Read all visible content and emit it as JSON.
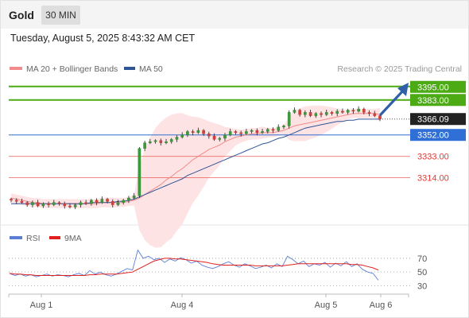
{
  "header": {
    "instrument": "Gold",
    "timeframe": "30 MIN",
    "datetime": "Tuesday, August 5, 2025 8:43:32 AM CET"
  },
  "legend": {
    "items": [
      {
        "label": "MA 20 + Bollinger Bands",
        "color": "#f28b8b"
      },
      {
        "label": "MA 50",
        "color": "#2f5597"
      }
    ],
    "credit": "Research © 2025 Trading Central"
  },
  "rsi_legend": {
    "items": [
      {
        "label": "RSI",
        "color": "#5b7fd6"
      },
      {
        "label": "9MA",
        "color": "#e02020"
      }
    ]
  },
  "chart_data": [
    {
      "type": "candlestick",
      "ylim": [
        3277,
        3404
      ],
      "xlabels": [
        "Aug 1",
        "Aug 4",
        "Aug 5",
        "Aug 6"
      ],
      "price_levels": [
        {
          "label": "3395.00",
          "value": 3395.0,
          "kind": "resistance",
          "color": "#4caa14"
        },
        {
          "label": "3383.00",
          "value": 3383.0,
          "kind": "resistance",
          "color": "#4caa14"
        },
        {
          "label": "3366.09",
          "value": 3366.09,
          "kind": "last",
          "color": "#222222"
        },
        {
          "label": "3352.00",
          "value": 3352.0,
          "kind": "pivot",
          "color": "#2f6fd6"
        },
        {
          "label": "3333.00",
          "value": 3333.0,
          "kind": "support",
          "color": "#e53935"
        },
        {
          "label": "3314.00",
          "value": 3314.0,
          "kind": "support",
          "color": "#e53935"
        }
      ],
      "close_series": [
        3294,
        3293,
        3292,
        3290,
        3292,
        3289,
        3291,
        3290,
        3292,
        3291,
        3289,
        3288,
        3290,
        3292,
        3291,
        3294,
        3292,
        3295,
        3293,
        3290,
        3292,
        3294,
        3296,
        3298,
        3340,
        3345,
        3346,
        3347,
        3345,
        3346,
        3348,
        3350,
        3352,
        3355,
        3354,
        3356,
        3353,
        3351,
        3348,
        3349,
        3352,
        3355,
        3354,
        3353,
        3355,
        3356,
        3354,
        3355,
        3357,
        3356,
        3359,
        3360,
        3372,
        3374,
        3370,
        3372,
        3369,
        3371,
        3370,
        3372,
        3371,
        3373,
        3372,
        3374,
        3373,
        3375,
        3372,
        3371,
        3369,
        3366
      ],
      "ma20_series": [
        3296,
        3295,
        3294,
        3293,
        3292,
        3292,
        3291,
        3291,
        3291,
        3291,
        3291,
        3291,
        3291,
        3291,
        3291,
        3291,
        3291,
        3292,
        3292,
        3292,
        3292,
        3292,
        3293,
        3294,
        3296,
        3299,
        3302,
        3305,
        3308,
        3312,
        3315,
        3319,
        3322,
        3326,
        3330,
        3333,
        3336,
        3339,
        3341,
        3343,
        3346,
        3348,
        3350,
        3351,
        3352,
        3353,
        3353,
        3354,
        3354,
        3354,
        3355,
        3356,
        3358,
        3360,
        3361,
        3362,
        3363,
        3364,
        3365,
        3366,
        3367,
        3368,
        3369,
        3370,
        3371,
        3371,
        3371,
        3371,
        3371,
        3370
      ],
      "ma50_series": [
        3291,
        3291,
        3291,
        3291,
        3291,
        3291,
        3291,
        3291,
        3291,
        3291,
        3291,
        3291,
        3291,
        3291,
        3291,
        3292,
        3292,
        3292,
        3292,
        3292,
        3293,
        3293,
        3294,
        3295,
        3297,
        3299,
        3301,
        3303,
        3305,
        3307,
        3309,
        3311,
        3313,
        3316,
        3318,
        3320,
        3322,
        3324,
        3326,
        3328,
        3330,
        3332,
        3334,
        3336,
        3338,
        3340,
        3342,
        3344,
        3345,
        3347,
        3349,
        3350,
        3352,
        3354,
        3356,
        3358,
        3359,
        3360,
        3361,
        3362,
        3363,
        3364,
        3364,
        3365,
        3365,
        3366,
        3366,
        3366,
        3366,
        3366
      ]
    },
    {
      "type": "line",
      "title": "RSI",
      "ylim": [
        20,
        85
      ],
      "yticks": [
        70,
        50,
        30
      ],
      "series": [
        {
          "name": "RSI",
          "color": "#5b7fd6",
          "values": [
            48,
            45,
            47,
            44,
            46,
            43,
            45,
            47,
            44,
            46,
            45,
            43,
            46,
            48,
            45,
            52,
            47,
            50,
            46,
            44,
            47,
            51,
            55,
            53,
            82,
            70,
            73,
            68,
            70,
            64,
            69,
            66,
            71,
            68,
            63,
            66,
            60,
            57,
            55,
            58,
            62,
            65,
            60,
            57,
            62,
            59,
            55,
            57,
            60,
            56,
            62,
            58,
            73,
            68,
            62,
            66,
            58,
            62,
            60,
            64,
            57,
            63,
            59,
            65,
            58,
            62,
            54,
            50,
            48,
            38
          ]
        },
        {
          "name": "9MA",
          "color": "#e02020",
          "values": [
            48,
            47,
            47,
            46,
            46,
            45,
            45,
            45,
            45,
            45,
            45,
            45,
            45,
            45,
            45,
            46,
            46,
            47,
            47,
            47,
            47,
            48,
            49,
            50,
            54,
            58,
            62,
            66,
            68,
            70,
            70,
            69,
            69,
            68,
            67,
            66,
            65,
            64,
            62,
            61,
            60,
            60,
            60,
            60,
            60,
            60,
            59,
            59,
            59,
            59,
            59,
            59,
            60,
            61,
            62,
            62,
            62,
            62,
            62,
            62,
            62,
            62,
            62,
            62,
            61,
            61,
            60,
            58,
            56,
            53
          ]
        }
      ]
    }
  ]
}
